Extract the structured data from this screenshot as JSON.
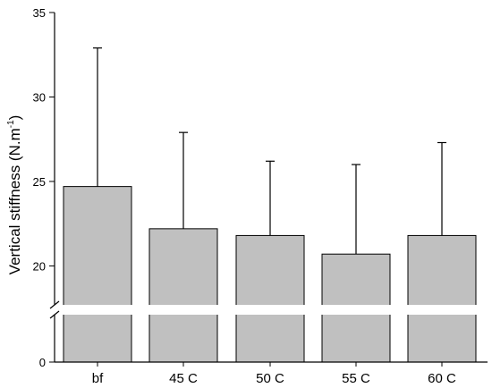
{
  "chart_data": {
    "type": "bar",
    "ylabel_main": "Vertical stiffness (N.m",
    "ylabel_sup": "-1",
    "ylabel_close": ")",
    "xlabel": "",
    "categories": [
      "bf",
      "45 C",
      "50 C",
      "55 C",
      "60 C"
    ],
    "values": [
      24.7,
      22.2,
      21.8,
      20.7,
      21.8
    ],
    "error_upper": [
      32.9,
      27.9,
      26.2,
      26.0,
      27.3
    ],
    "y_axis_break": true,
    "y_segments": [
      {
        "range": [
          0,
          4
        ],
        "ticks": [
          0
        ]
      },
      {
        "range": [
          17.8,
          35
        ],
        "ticks": [
          20,
          25,
          30,
          35
        ]
      }
    ],
    "tick_labels": [
      "0",
      "20",
      "25",
      "30",
      "35"
    ],
    "bar_color": "#c0c0c0",
    "bar_edge_color": "#000000",
    "grid": false,
    "legend": "none"
  }
}
